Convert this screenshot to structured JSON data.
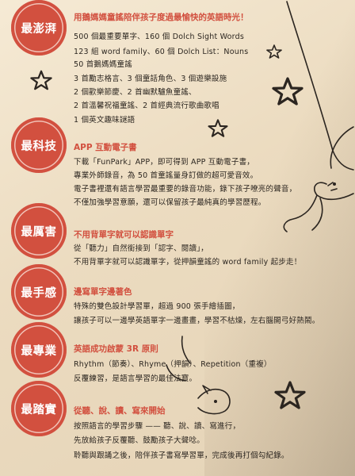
{
  "sections": [
    {
      "badge": "最澎湃",
      "heading": "用鵝媽媽童謠陪伴孩子度過最愉快的英語時光！",
      "lines": [
        "500 個最重要單字、160 個 Dolch Sight Words",
        "123 組 word family、60 個 Dolch List：Nouns",
        "50 首鵝媽媽童謠",
        "3 首勵志格言、3 個童話角色、3 個遊樂設施",
        "2 個歡樂節慶、2 首幽默驢魚童謠、",
        "2 首溫馨祝福童謠、2 首經典流行歌曲歌唱",
        "1 個英文趣味謎語"
      ]
    },
    {
      "badge": "最科技",
      "heading": "APP 互動電子書",
      "lines": [
        "下載「FunPark」APP，即可得到 APP 互動電子書，",
        "專業外師錄音，為 50 首童謠量身訂做的超可愛音效。",
        "電子書裡還有語言學習最重要的錄音功能，錄下孩子嘹亮的聲音，",
        "不僅加強學習意願，還可以保留孩子最純真的學習歷程。"
      ]
    },
    {
      "badge": "最厲害",
      "heading": "不用背單字就可以認識單字",
      "lines": [
        "從「聽力」自然銜接到「認字、閱讀」，",
        "不用背單字就可以認識單字，從押韻童謠的 word family 起步走！"
      ]
    },
    {
      "badge": "最手感",
      "heading": "邊寫單字邊著色",
      "lines": [
        "特殊的雙色設計學習單，超過 900 張手繪插圖，",
        "讓孩子可以一邊學英語單字一邊畫畫，學習不枯燥，左右腦開弓好熱鬧。"
      ]
    },
    {
      "badge": "最專業",
      "heading": "英語成功啟蒙 3R 原則",
      "lines": [
        "Rhythm（節奏）、Rhyme（押韻）、Repetition（重複）",
        "反覆練習，是語言學習的最佳法寶。"
      ]
    },
    {
      "badge": "最踏實",
      "heading": "從聽、說、讀、寫來開始",
      "lines": [
        "按照語言的學習步驟 —— 聽、說、讀、寫進行，",
        "先放給孩子反覆聽、鼓勵孩子大聲唸。",
        "聆聽與跟誦之後，陪伴孩子書寫學習單，完成後再打個勾紀錄。"
      ]
    }
  ]
}
